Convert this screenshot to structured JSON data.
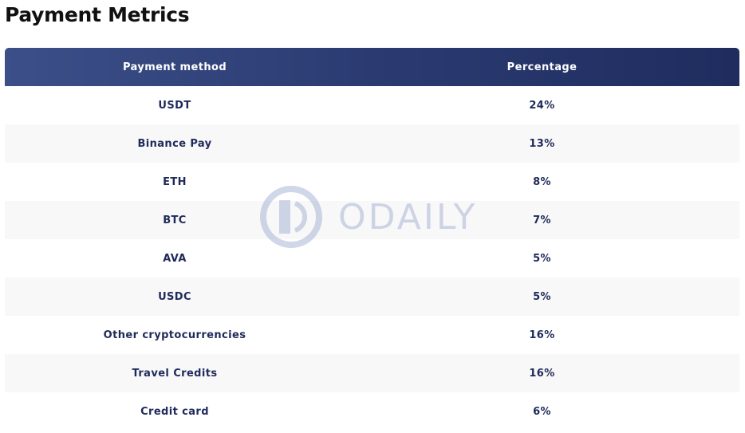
{
  "title": "Payment Metrics",
  "table": {
    "headers": [
      "Payment method",
      "Percentage"
    ],
    "rows": [
      {
        "method": "USDT",
        "percentage": "24%"
      },
      {
        "method": "Binance Pay",
        "percentage": "13%"
      },
      {
        "method": "ETH",
        "percentage": "8%"
      },
      {
        "method": "BTC",
        "percentage": "7%"
      },
      {
        "method": "AVA",
        "percentage": "5%"
      },
      {
        "method": "USDC",
        "percentage": "5%"
      },
      {
        "method": "Other cryptocurrencies",
        "percentage": "16%"
      },
      {
        "method": "Travel Credits",
        "percentage": "16%"
      },
      {
        "method": "Credit card",
        "percentage": "6%"
      }
    ]
  },
  "watermark": {
    "text": "ODAILY"
  },
  "colors": {
    "header_start": "#3c4f88",
    "header_end": "#1f2c5e",
    "cell_text": "#1f2a5a",
    "watermark": "#7b8fc0"
  }
}
